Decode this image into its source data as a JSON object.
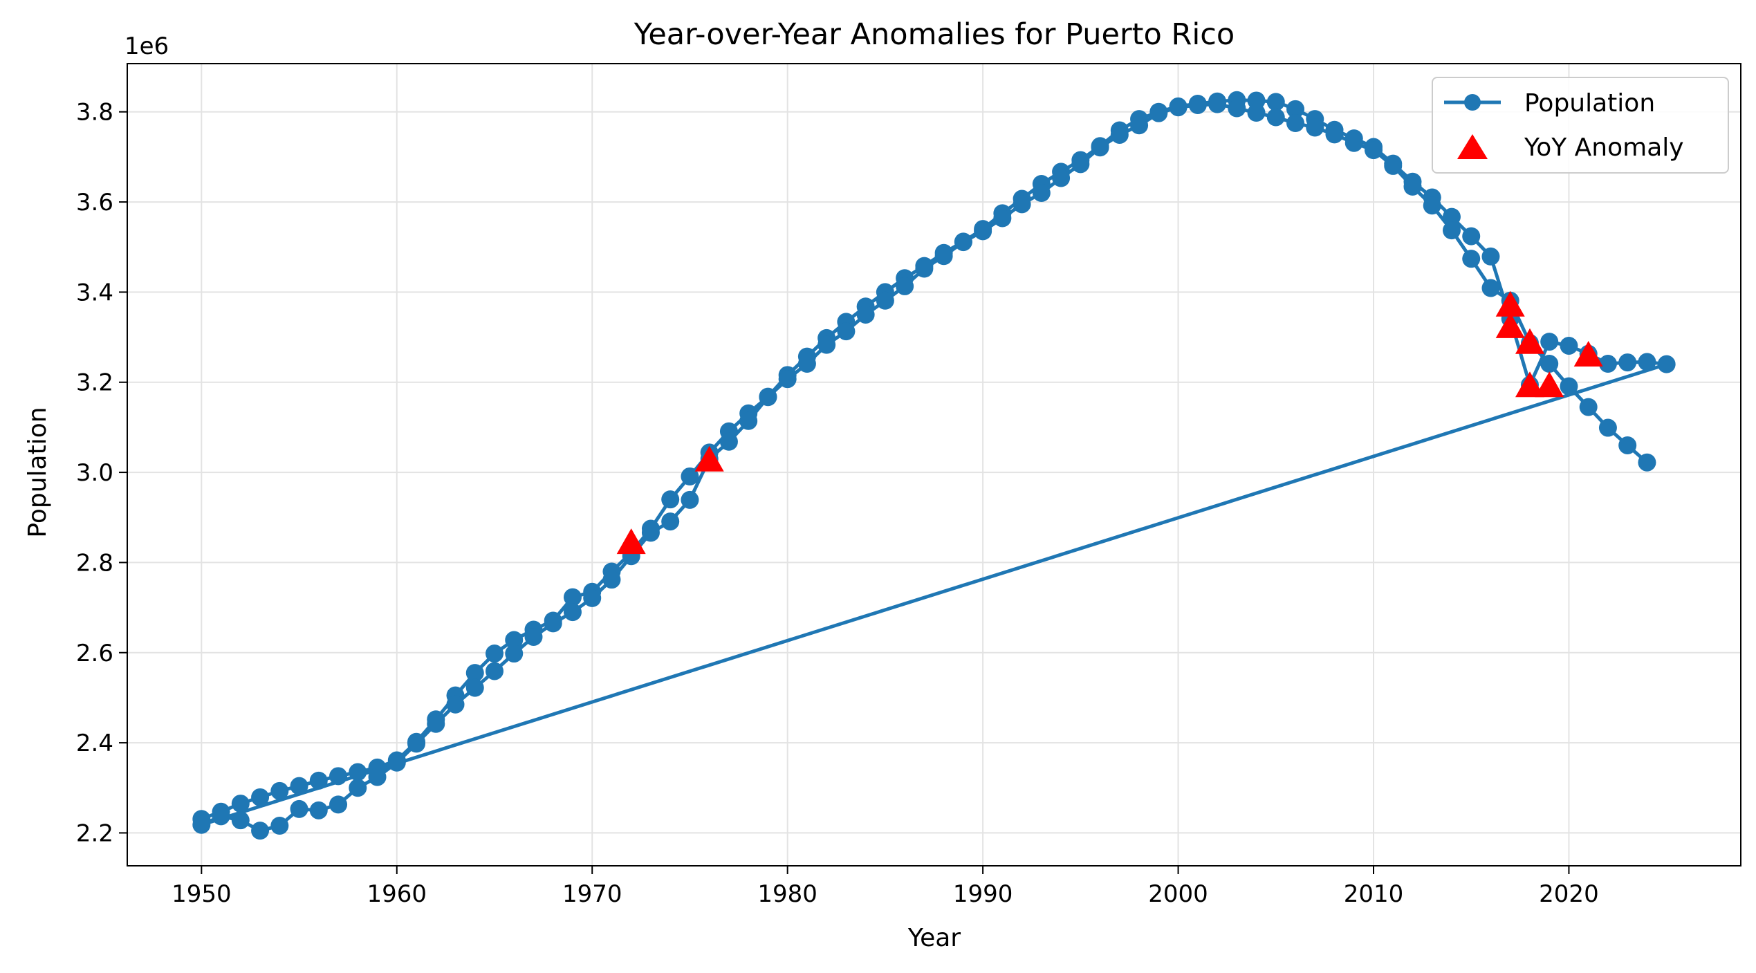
{
  "chart_data": {
    "type": "line",
    "title": "Year-over-Year Anomalies for Puerto Rico",
    "xlabel": "Year",
    "ylabel": "Population",
    "y_offset_label": "1e6",
    "xlim": [
      1946.2,
      2028.8
    ],
    "ylim": [
      2127000,
      3907000
    ],
    "x_ticks": [
      1950,
      1960,
      1970,
      1980,
      1990,
      2000,
      2010,
      2020
    ],
    "y_ticks": [
      2200000,
      2400000,
      2600000,
      2800000,
      3000000,
      3200000,
      3400000,
      3600000,
      3800000
    ],
    "y_tick_labels": [
      "2.2",
      "2.4",
      "2.6",
      "2.8",
      "3.0",
      "3.2",
      "3.4",
      "3.6",
      "3.8"
    ],
    "grid": true,
    "legend_position": "top-right",
    "colors": {
      "line": "#1f77b4",
      "anomaly": "#ff0000"
    },
    "series": [
      {
        "name": "Population",
        "style": "line-with-circle-markers",
        "x": [
          1950,
          1951,
          1952,
          1953,
          1954,
          1955,
          1956,
          1957,
          1958,
          1959,
          1960,
          1961,
          1962,
          1963,
          1964,
          1965,
          1966,
          1967,
          1968,
          1969,
          1970,
          1971,
          1972,
          1973,
          1974,
          1975,
          1976,
          1977,
          1978,
          1979,
          1980,
          1981,
          1982,
          1983,
          1984,
          1985,
          1986,
          1987,
          1988,
          1989,
          1990,
          1991,
          1992,
          1993,
          1994,
          1995,
          1996,
          1997,
          1998,
          1999,
          2000,
          2001,
          2002,
          2003,
          2004,
          2005,
          2006,
          2007,
          2008,
          2009,
          2010,
          2011,
          2012,
          2013,
          2014,
          2015,
          2016,
          2017,
          2018,
          2019,
          2020,
          2021,
          2022,
          2023,
          2024,
          2025,
          1950,
          1951,
          1952,
          1953,
          1954,
          1955,
          1956,
          1957,
          1958,
          1959,
          1960,
          1961,
          1962,
          1963,
          1964,
          1965,
          1966,
          1967,
          1968,
          1969,
          1970,
          1971,
          1972,
          1973,
          1974,
          1975,
          1976,
          1977,
          1978,
          1979,
          1980,
          1981,
          1982,
          1983,
          1984,
          1985,
          1986,
          1987,
          1988,
          1989,
          1990,
          1991,
          1992,
          1993,
          1994,
          1995,
          1996,
          1997,
          1998,
          1999,
          2000,
          2001,
          2002,
          2003,
          2004,
          2005,
          2006,
          2007,
          2008,
          2009,
          2010,
          2011,
          2012,
          2013,
          2014,
          2015,
          2016,
          2017,
          2018,
          2019,
          2020,
          2021,
          2022,
          2023,
          2024
        ],
        "values": [
          2231000,
          2247000,
          2265000,
          2279000,
          2293000,
          2304000,
          2316000,
          2326000,
          2335000,
          2345000,
          2361000,
          2402000,
          2452000,
          2505000,
          2555000,
          2598000,
          2628000,
          2651000,
          2671000,
          2723000,
          2735000,
          2780000,
          2822000,
          2875000,
          2940000,
          2991000,
          3044000,
          3091000,
          3131000,
          3168000,
          3216000,
          3257000,
          3298000,
          3334000,
          3368000,
          3400000,
          3431000,
          3458000,
          3487000,
          3512000,
          3540000,
          3575000,
          3607000,
          3640000,
          3667000,
          3693000,
          3724000,
          3759000,
          3784000,
          3800000,
          3812000,
          3818000,
          3823000,
          3826000,
          3825000,
          3822000,
          3806000,
          3784000,
          3760000,
          3741000,
          3722000,
          3685000,
          3645000,
          3610000,
          3567000,
          3524000,
          3479000,
          3341000,
          3194000,
          3290000,
          3281000,
          3263000,
          3241000,
          3244000,
          3245000,
          3240000,
          2218000,
          2237000,
          2228000,
          2205000,
          2216000,
          2253000,
          2250000,
          2263000,
          2300000,
          2324000,
          2356000,
          2398000,
          2442000,
          2485000,
          2522000,
          2559000,
          2598000,
          2635000,
          2665000,
          2690000,
          2721000,
          2762000,
          2814000,
          2866000,
          2891000,
          2939000,
          3030000,
          3068000,
          3114000,
          3167000,
          3207000,
          3241000,
          3283000,
          3313000,
          3350000,
          3381000,
          3413000,
          3452000,
          3480000,
          3511000,
          3535000,
          3564000,
          3595000,
          3620000,
          3653000,
          3684000,
          3721000,
          3749000,
          3770000,
          3797000,
          3810000,
          3815000,
          3817000,
          3808000,
          3798000,
          3788000,
          3775000,
          3765000,
          3750000,
          3731000,
          3715000,
          3680000,
          3634000,
          3592000,
          3537000,
          3474000,
          3409000,
          3381000,
          3287000,
          3241000,
          3191000,
          3145000,
          3099000,
          3060000,
          3022000
        ]
      },
      {
        "name": "YoY Anomaly",
        "style": "red-triangle-markers",
        "x": [
          1972,
          1976,
          2017,
          2017,
          2018,
          2018,
          2019,
          2021
        ],
        "values": [
          2845000,
          3028000,
          3372000,
          3324000,
          3289000,
          3193000,
          3193000,
          3261000
        ]
      }
    ]
  }
}
